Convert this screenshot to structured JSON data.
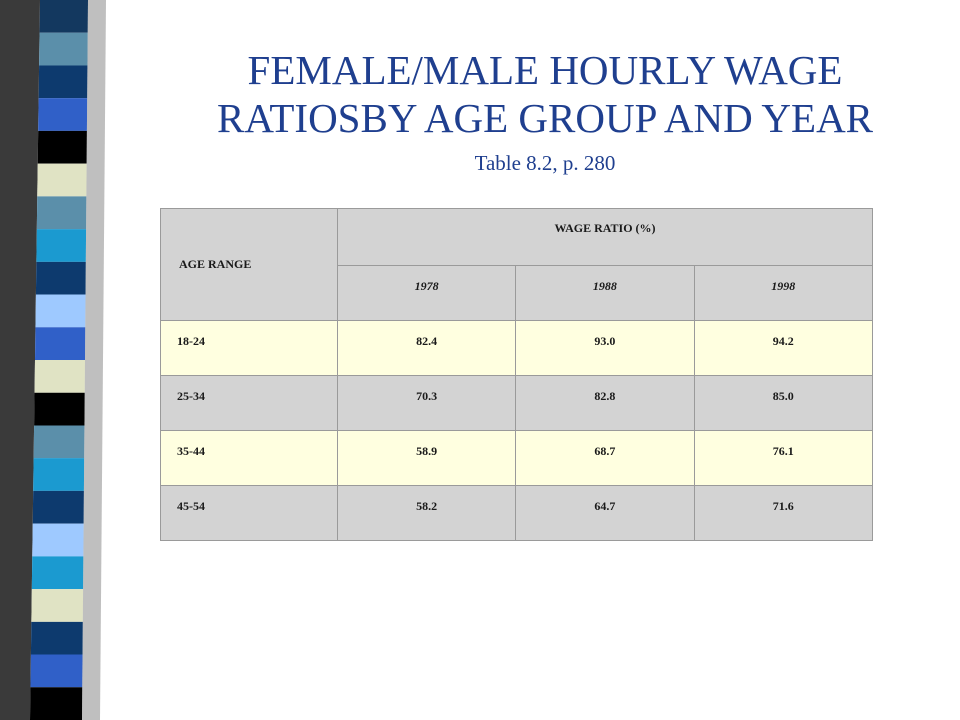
{
  "slide": {
    "title_line1": "FEMALE/MALE HOURLY WAGE",
    "title_line2": "RATIOSBY AGE GROUP AND YEAR",
    "subtitle": "Table 8.2, p. 280"
  },
  "colors": {
    "title": "#1f3f8f",
    "header_bg": "#d3d3d3",
    "row_highlight_bg": "#ffffe0",
    "stripes": [
      "#13385f",
      "#5b8faa",
      "#0d3a6e",
      "#3060c8",
      "#000000",
      "#e0e3c4",
      "#5b8faa",
      "#1b9ad0",
      "#0d3a6e",
      "#9ec9ff",
      "#3060c8",
      "#e0e3c4",
      "#000000",
      "#5b8faa",
      "#1b9ad0",
      "#0d3a6e",
      "#9ec9ff",
      "#1b9ad0",
      "#e0e3c4",
      "#0d3a6e",
      "#3060c8",
      "#000000"
    ]
  },
  "table": {
    "age_header": "AGE RANGE",
    "group_header": "WAGE RATIO (%)",
    "years": [
      "1978",
      "1988",
      "1998"
    ],
    "rows": [
      {
        "age": "18-24",
        "values": [
          "82.4",
          "93.0",
          "94.2"
        ]
      },
      {
        "age": "25-34",
        "values": [
          "70.3",
          "82.8",
          "85.0"
        ]
      },
      {
        "age": "35-44",
        "values": [
          "58.9",
          "68.7",
          "76.1"
        ]
      },
      {
        "age": "45-54",
        "values": [
          "58.2",
          "64.7",
          "71.6"
        ]
      }
    ]
  }
}
